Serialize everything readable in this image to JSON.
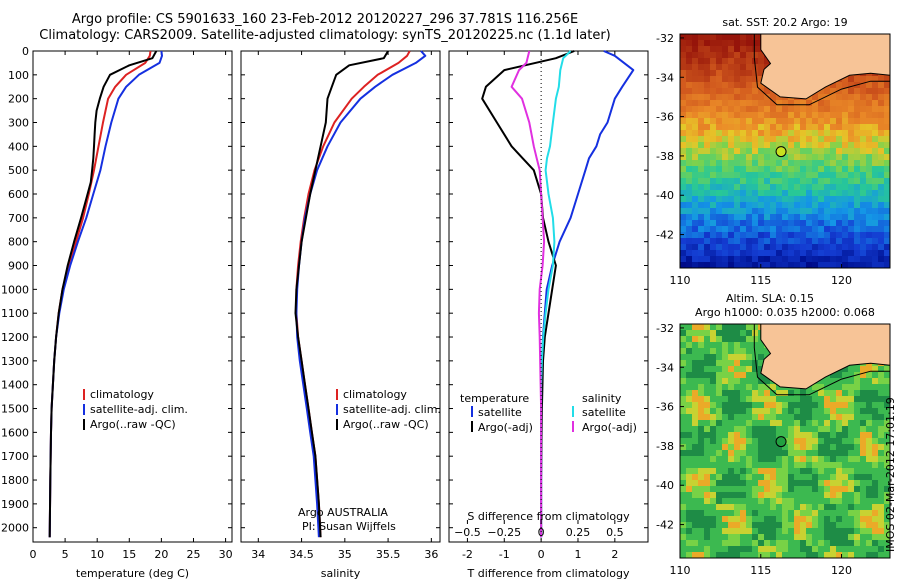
{
  "header": {
    "line1": "Argo profile: CS 5901633_160 23-Feb-2012 20120227_296 37.781S 116.256E",
    "line2": "Climatology: CARS2009. Satellite-adjusted climatology: synTS_20120225.nc (1.1d later)"
  },
  "colors": {
    "climatology": "#dd2222",
    "satellite": "#1530e0",
    "argo": "#000000",
    "satellite_s": "#22dde8",
    "argo_s": "#e030e0"
  },
  "chart_data": [
    {
      "type": "line",
      "id": "temperature",
      "xlabel": "temperature (deg C)",
      "xlim": [
        0,
        31
      ],
      "xticks": [
        0,
        5,
        10,
        15,
        20,
        25,
        30
      ],
      "ylim": [
        2060,
        0
      ],
      "yticks": [
        0,
        100,
        200,
        300,
        400,
        500,
        600,
        700,
        800,
        900,
        1000,
        1100,
        1200,
        1300,
        1400,
        1500,
        1600,
        1700,
        1800,
        1900,
        2000
      ],
      "legend_labels": [
        "climatology",
        "satellite-adj. clim.",
        "Argo(..raw -QC)"
      ],
      "series": [
        {
          "name": "climatology",
          "color": "#dd2222",
          "x": [
            18.3,
            18.2,
            17.5,
            14.5,
            12.8,
            11.7,
            10.9,
            10.2,
            9.5,
            8.7,
            7.8,
            6.7,
            5.6,
            4.6,
            4.0,
            3.6,
            3.3,
            3.1,
            2.9,
            2.8,
            2.7,
            2.6
          ],
          "y": [
            0,
            20,
            50,
            100,
            150,
            200,
            300,
            400,
            500,
            600,
            700,
            800,
            900,
            1000,
            1100,
            1200,
            1300,
            1400,
            1500,
            1600,
            1800,
            2040
          ]
        },
        {
          "name": "satellite-adj. clim.",
          "color": "#1530e0",
          "x": [
            20.0,
            20.1,
            19.7,
            16.5,
            14.5,
            13.3,
            12.2,
            11.3,
            10.5,
            9.4,
            8.3,
            7.0,
            5.8,
            4.8,
            4.1,
            3.6,
            3.3,
            3.1,
            2.9,
            2.8,
            2.7,
            2.6
          ],
          "y": [
            0,
            20,
            50,
            100,
            150,
            200,
            300,
            400,
            500,
            600,
            700,
            800,
            900,
            1000,
            1100,
            1200,
            1300,
            1400,
            1500,
            1600,
            1800,
            2040
          ]
        },
        {
          "name": "Argo(..raw -QC)",
          "color": "#000000",
          "x": [
            19.2,
            18.6,
            15.0,
            12.0,
            11.0,
            10.4,
            9.9,
            9.7,
            9.6,
            9.5,
            9.4,
            9.2,
            9.0,
            8.5,
            7.5,
            6.4,
            5.4,
            4.6,
            4.0,
            3.6,
            3.3,
            3.1,
            2.9,
            2.8,
            2.7,
            2.6
          ],
          "y": [
            0,
            30,
            60,
            100,
            150,
            200,
            250,
            300,
            350,
            400,
            450,
            500,
            550,
            600,
            700,
            800,
            900,
            1000,
            1100,
            1200,
            1300,
            1400,
            1500,
            1600,
            1800,
            2040
          ]
        }
      ]
    },
    {
      "type": "line",
      "id": "salinity",
      "xlabel": "salinity",
      "xlim": [
        33.8,
        36.1
      ],
      "xticks": [
        34,
        34.5,
        35,
        35.5,
        36
      ],
      "xtick_labels": [
        "34",
        "34.5",
        "35",
        "35.5",
        "36"
      ],
      "ylim": [
        2060,
        0
      ],
      "legend_labels": [
        "climatology",
        "satellite-adj. clim.",
        "Argo(..raw -QC)"
      ],
      "annotation": [
        "Argo AUSTRALIA",
        "PI: Susan Wijffels"
      ],
      "series": [
        {
          "name": "climatology",
          "color": "#dd2222",
          "x": [
            35.75,
            35.72,
            35.62,
            35.38,
            35.22,
            35.08,
            34.88,
            34.75,
            34.65,
            34.58,
            34.53,
            34.49,
            34.46,
            34.44,
            34.44,
            34.46,
            34.5,
            34.54,
            34.58,
            34.62,
            34.66,
            34.7,
            34.72
          ],
          "y": [
            0,
            20,
            50,
            100,
            150,
            200,
            300,
            400,
            500,
            600,
            700,
            800,
            900,
            1000,
            1100,
            1200,
            1300,
            1400,
            1500,
            1600,
            1700,
            1900,
            2040
          ]
        },
        {
          "name": "satellite-adj. clim.",
          "color": "#1530e0",
          "x": [
            35.88,
            35.93,
            35.82,
            35.55,
            35.35,
            35.18,
            34.95,
            34.8,
            34.68,
            34.6,
            34.54,
            34.5,
            34.47,
            34.45,
            34.44,
            34.45,
            34.48,
            34.52,
            34.56,
            34.6,
            34.64,
            34.68,
            34.7
          ],
          "y": [
            0,
            20,
            50,
            100,
            150,
            200,
            300,
            400,
            500,
            600,
            700,
            800,
            900,
            1000,
            1100,
            1200,
            1300,
            1400,
            1500,
            1600,
            1700,
            1900,
            2040
          ]
        },
        {
          "name": "Argo(..raw -QC)",
          "color": "#000000",
          "x": [
            35.5,
            35.45,
            35.05,
            34.9,
            34.85,
            34.8,
            34.78,
            34.72,
            34.66,
            34.6,
            34.55,
            34.5,
            34.47,
            34.44,
            34.43,
            34.46,
            34.5,
            34.54,
            34.58,
            34.62,
            34.66,
            34.7,
            34.72
          ],
          "y": [
            0,
            30,
            60,
            100,
            150,
            200,
            300,
            400,
            500,
            600,
            700,
            800,
            900,
            1000,
            1100,
            1200,
            1300,
            1400,
            1500,
            1600,
            1700,
            1900,
            2040
          ]
        }
      ]
    },
    {
      "type": "line",
      "id": "difference",
      "xlabel": "T difference from climatology",
      "xlim": [
        -2.5,
        2.9
      ],
      "xticks": [
        -2,
        -1,
        0,
        1,
        2
      ],
      "xlabel_top": "S difference from climatology",
      "s_ticks": [
        -0.5,
        -0.25,
        0,
        0.25,
        0.5
      ],
      "s_tick_labels": [
        "−0.5",
        "−0.25",
        "0",
        "0.25",
        "0.5"
      ],
      "s_scale": 4,
      "ylim": [
        2060,
        0
      ],
      "legend_temperature": {
        "title": "temperature",
        "items": [
          "satellite",
          "Argo(-adj)"
        ]
      },
      "legend_salinity": {
        "title": "salinity",
        "items": [
          "satellite",
          "Argo(-adj)"
        ]
      },
      "series": [
        {
          "name": "satellite",
          "group": "temperature",
          "color": "#1530e0",
          "x": [
            1.7,
            2.0,
            2.5,
            2.2,
            2.0,
            1.8,
            1.6,
            1.5,
            1.3,
            1.2,
            1.0,
            0.8,
            0.5,
            0.3,
            0.15,
            0.1,
            0.05,
            0.02,
            0.01,
            0,
            0
          ],
          "y": [
            0,
            20,
            80,
            150,
            200,
            300,
            350,
            400,
            450,
            500,
            600,
            700,
            800,
            900,
            1000,
            1100,
            1200,
            1300,
            1500,
            1800,
            2040
          ]
        },
        {
          "name": "Argo(-adj)",
          "group": "temperature",
          "color": "#000000",
          "x": [
            0.9,
            0.4,
            -1.0,
            -1.5,
            -1.6,
            -1.2,
            -0.8,
            -0.5,
            -0.2,
            0,
            0.05,
            0.2,
            0.4,
            0.3,
            0.2,
            0.1,
            0.05,
            0.02,
            0,
            0
          ],
          "y": [
            0,
            30,
            80,
            150,
            200,
            300,
            400,
            450,
            500,
            600,
            700,
            800,
            900,
            1000,
            1100,
            1200,
            1300,
            1500,
            1800,
            2040
          ]
        },
        {
          "name": "satellite",
          "group": "salinity",
          "color": "#22dde8",
          "x": [
            0.2,
            0.15,
            0.13,
            0.12,
            0.1,
            0.08,
            0.06,
            0.04,
            0.03,
            0.05,
            0.08,
            0.09,
            0.08,
            0.05,
            0.03,
            0.015,
            0.005,
            0,
            0,
            0
          ],
          "y": [
            0,
            30,
            80,
            150,
            200,
            300,
            400,
            450,
            500,
            600,
            700,
            800,
            900,
            1000,
            1100,
            1200,
            1300,
            1400,
            1800,
            2040
          ]
        },
        {
          "name": "Argo(-adj)",
          "group": "salinity",
          "color": "#e030e0",
          "x": [
            -0.08,
            -0.1,
            -0.15,
            -0.2,
            -0.13,
            -0.08,
            -0.05,
            -0.03,
            -0.01,
            0,
            0.01,
            0.02,
            0.01,
            -0.01,
            -0.015,
            -0.01,
            0,
            0
          ],
          "y": [
            0,
            50,
            80,
            150,
            200,
            300,
            400,
            450,
            500,
            600,
            700,
            800,
            900,
            1000,
            1100,
            1200,
            1500,
            2040
          ]
        }
      ]
    },
    {
      "type": "heatmap",
      "id": "sst-map",
      "title": "sat. SST: 20.2 Argo: 19",
      "xlim": [
        110,
        123
      ],
      "ylim": [
        -43.7,
        -31.8
      ],
      "xticks": [
        110,
        115,
        120
      ],
      "yticks": [
        -32,
        -34,
        -36,
        -38,
        -40,
        -42
      ],
      "marker": {
        "lon": 116.256,
        "lat": -37.781,
        "color": "#c8e020"
      }
    },
    {
      "type": "heatmap",
      "id": "sla-map",
      "title": "Altim. SLA: 0.15",
      "subtitle": "Argo h1000: 0.035 h2000: 0.068",
      "xlim": [
        110,
        123
      ],
      "ylim": [
        -43.7,
        -31.8
      ],
      "xticks": [
        110,
        115,
        120
      ],
      "yticks": [
        -32,
        -34,
        -36,
        -38,
        -40,
        -42
      ],
      "marker": {
        "lon": 116.256,
        "lat": -37.781,
        "color": "#22a040"
      }
    }
  ],
  "footer": {
    "stamp": "IMOS 02-Mar-2012 17:01:19"
  }
}
